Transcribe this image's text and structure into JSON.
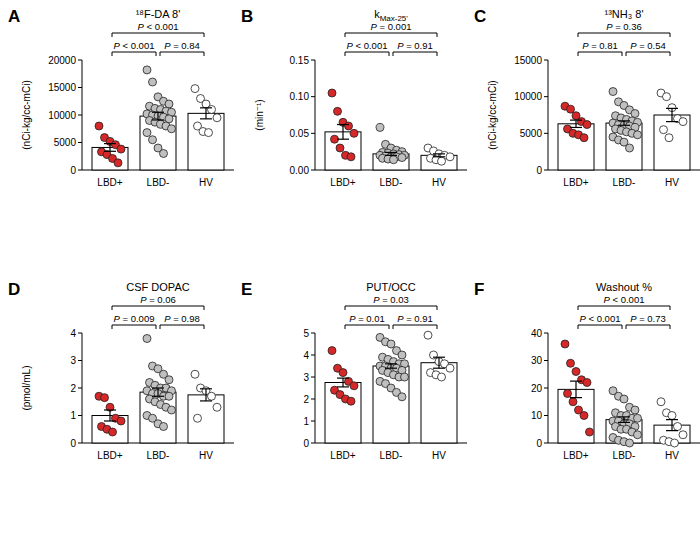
{
  "chart_data": [
    {
      "type": "bar",
      "panel_label": "A",
      "title": "¹⁸F-DA 8'",
      "ylabel": "(nCi-kg/cc-mCi)",
      "categories": [
        "LBD+",
        "LBD-",
        "HV"
      ],
      "values": [
        4100,
        9800,
        10300
      ],
      "errors": [
        700,
        700,
        1000
      ],
      "points": [
        [
          8000,
          5900,
          5200,
          4600,
          3800,
          3300,
          2800,
          2100,
          1300
        ],
        [
          18200,
          16000,
          13300,
          12500,
          12000,
          11600,
          11200,
          11000,
          10700,
          10500,
          10200,
          10000,
          9800,
          9600,
          9300,
          9000,
          8700,
          8300,
          8000,
          7500,
          6800,
          5500,
          4000,
          3000
        ],
        [
          14800,
          13000,
          12000,
          11000,
          9500,
          8000,
          7000,
          6800
        ]
      ],
      "color": "#ffffff",
      "colors": [
        "#d62828",
        "#c0c0c0",
        "#ffffff"
      ],
      "ylim": [
        0,
        20000
      ],
      "yticks": [
        0,
        5000,
        10000,
        15000,
        20000
      ],
      "annotations": [
        {
          "groups": [
            "LBD+",
            "LBD-"
          ],
          "text": "P < 0.001"
        },
        {
          "groups": [
            "LBD-",
            "HV"
          ],
          "text": "P = 0.84"
        },
        {
          "groups": [
            "LBD+",
            "HV"
          ],
          "text": "P < 0.001"
        }
      ]
    },
    {
      "type": "bar",
      "panel_label": "B",
      "title": "k",
      "title_sub": "Max-25'",
      "ylabel": "(min⁻¹)",
      "categories": [
        "LBD+",
        "LBD-",
        "HV"
      ],
      "values": [
        0.052,
        0.022,
        0.02
      ],
      "errors": [
        0.01,
        0.002,
        0.002
      ],
      "points": [
        [
          0.105,
          0.08,
          0.065,
          0.06,
          0.05,
          0.042,
          0.03,
          0.02,
          0.018
        ],
        [
          0.058,
          0.035,
          0.03,
          0.027,
          0.025,
          0.024,
          0.023,
          0.022,
          0.021,
          0.02,
          0.02,
          0.019,
          0.018,
          0.018,
          0.017,
          0.016,
          0.015,
          0.014
        ],
        [
          0.03,
          0.026,
          0.022,
          0.02,
          0.018,
          0.016,
          0.014,
          0.012
        ]
      ],
      "color": "#ffffff",
      "colors": [
        "#d62828",
        "#c0c0c0",
        "#ffffff"
      ],
      "ylim": [
        0,
        0.15
      ],
      "yticks": [
        {
          "value": 0,
          "label": "0.00"
        },
        {
          "value": 0.05,
          "label": "0.05"
        },
        {
          "value": 0.1,
          "label": "0.10"
        },
        {
          "value": 0.15,
          "label": "0.15"
        }
      ],
      "annotations": [
        {
          "groups": [
            "LBD+",
            "LBD-"
          ],
          "text": "P < 0.001"
        },
        {
          "groups": [
            "LBD-",
            "HV"
          ],
          "text": "P = 0.91"
        },
        {
          "groups": [
            "LBD+",
            "HV"
          ],
          "text": "P = 0.001"
        }
      ]
    },
    {
      "type": "bar",
      "panel_label": "C",
      "title": "¹³NH₃ 8'",
      "ylabel": "(nCi-kg/cc-mCi)",
      "categories": [
        "LBD+",
        "LBD-",
        "HV"
      ],
      "values": [
        6300,
        6400,
        7500
      ],
      "errors": [
        500,
        300,
        900
      ],
      "points": [
        [
          8700,
          8300,
          7400,
          6600,
          6200,
          5600,
          5000,
          4800,
          4400
        ],
        [
          10700,
          9300,
          8800,
          8200,
          7700,
          7400,
          7100,
          6900,
          6700,
          6500,
          6400,
          6200,
          6100,
          6000,
          5800,
          5600,
          5400,
          5200,
          5000,
          4800,
          4500,
          4100,
          3800,
          3000
        ],
        [
          10500,
          10000,
          8500,
          7000,
          6600,
          5500,
          4400
        ]
      ],
      "color": "#ffffff",
      "colors": [
        "#d62828",
        "#c0c0c0",
        "#ffffff"
      ],
      "ylim": [
        0,
        15000
      ],
      "yticks": [
        0,
        5000,
        10000,
        15000
      ],
      "annotations": [
        {
          "groups": [
            "LBD+",
            "LBD-"
          ],
          "text": "P = 0.81"
        },
        {
          "groups": [
            "LBD-",
            "HV"
          ],
          "text": "P = 0.54"
        },
        {
          "groups": [
            "LBD+",
            "HV"
          ],
          "text": "P = 0.36"
        }
      ]
    },
    {
      "type": "bar",
      "panel_label": "D",
      "title": "CSF DOPAC",
      "ylabel": "(pmol/mL)",
      "categories": [
        "LBD+",
        "LBD-",
        "HV"
      ],
      "values": [
        1.0,
        1.85,
        1.75
      ],
      "errors": [
        0.2,
        0.15,
        0.22
      ],
      "points": [
        [
          1.7,
          1.65,
          1.3,
          0.9,
          0.8,
          0.6,
          0.5,
          0.4
        ],
        [
          3.8,
          2.8,
          2.7,
          2.5,
          2.3,
          2.2,
          2.1,
          2.0,
          2.0,
          1.9,
          1.9,
          1.8,
          1.8,
          1.7,
          1.7,
          1.6,
          1.5,
          1.4,
          1.3,
          1.2,
          1.0,
          0.9,
          0.7,
          0.6
        ],
        [
          2.5,
          2.0,
          1.9,
          1.7,
          1.3,
          0.9
        ]
      ],
      "color": "#ffffff",
      "colors": [
        "#d62828",
        "#c0c0c0",
        "#ffffff"
      ],
      "ylim": [
        0,
        4
      ],
      "yticks": [
        0,
        1,
        2,
        3,
        4
      ],
      "annotations": [
        {
          "groups": [
            "LBD+",
            "LBD-"
          ],
          "text": "P = 0.009"
        },
        {
          "groups": [
            "LBD-",
            "HV"
          ],
          "text": "P = 0.98"
        },
        {
          "groups": [
            "LBD+",
            "HV"
          ],
          "text": "P = 0.06"
        }
      ]
    },
    {
      "type": "bar",
      "panel_label": "E",
      "title": "PUT/OCC",
      "categories": [
        "LBD+",
        "LBD-",
        "HV"
      ],
      "values": [
        2.75,
        3.5,
        3.65
      ],
      "errors": [
        0.2,
        0.1,
        0.25
      ],
      "points": [
        [
          4.2,
          3.4,
          3.2,
          2.8,
          2.6,
          2.4,
          2.2,
          2.0,
          1.9
        ],
        [
          4.8,
          4.6,
          4.5,
          4.2,
          4.0,
          3.9,
          3.8,
          3.7,
          3.6,
          3.6,
          3.5,
          3.5,
          3.4,
          3.4,
          3.3,
          3.3,
          3.2,
          3.1,
          3.0,
          3.0,
          2.8,
          2.7,
          2.5,
          2.3,
          2.1
        ],
        [
          4.9,
          4.0,
          3.7,
          3.6,
          3.4,
          3.2,
          3.1,
          3.0
        ]
      ],
      "color": "#ffffff",
      "colors": [
        "#d62828",
        "#c0c0c0",
        "#ffffff"
      ],
      "ylim": [
        0,
        5
      ],
      "yticks": [
        0,
        1,
        2,
        3,
        4,
        5
      ],
      "annotations": [
        {
          "groups": [
            "LBD+",
            "LBD-"
          ],
          "text": "P = 0.01"
        },
        {
          "groups": [
            "LBD-",
            "HV"
          ],
          "text": "P = 0.91"
        },
        {
          "groups": [
            "LBD+",
            "HV"
          ],
          "text": "P = 0.03"
        }
      ]
    },
    {
      "type": "bar",
      "panel_label": "F",
      "title": "Washout %",
      "categories": [
        "LBD+",
        "LBD-",
        "HV"
      ],
      "values": [
        19.5,
        8.5,
        6.5
      ],
      "errors": [
        3,
        1,
        2
      ],
      "points": [
        [
          36,
          29,
          26,
          23,
          22,
          18,
          15,
          12,
          10,
          4
        ],
        [
          19,
          17,
          16,
          13,
          12,
          11,
          10,
          10,
          9,
          9,
          8,
          8,
          7,
          7,
          6,
          6,
          5,
          5,
          4,
          3,
          2,
          1,
          0.5,
          0
        ],
        [
          15,
          11,
          10,
          6,
          3,
          1,
          0.5,
          0
        ]
      ],
      "color": "#ffffff",
      "colors": [
        "#d62828",
        "#c0c0c0",
        "#ffffff"
      ],
      "ylim": [
        0,
        40
      ],
      "yticks": [
        0,
        10,
        20,
        30,
        40
      ],
      "annotations": [
        {
          "groups": [
            "LBD+",
            "LBD-"
          ],
          "text": "P < 0.001"
        },
        {
          "groups": [
            "LBD-",
            "HV"
          ],
          "text": "P = 0.73"
        },
        {
          "groups": [
            "LBD+",
            "HV"
          ],
          "text": "P < 0.001"
        }
      ]
    }
  ]
}
